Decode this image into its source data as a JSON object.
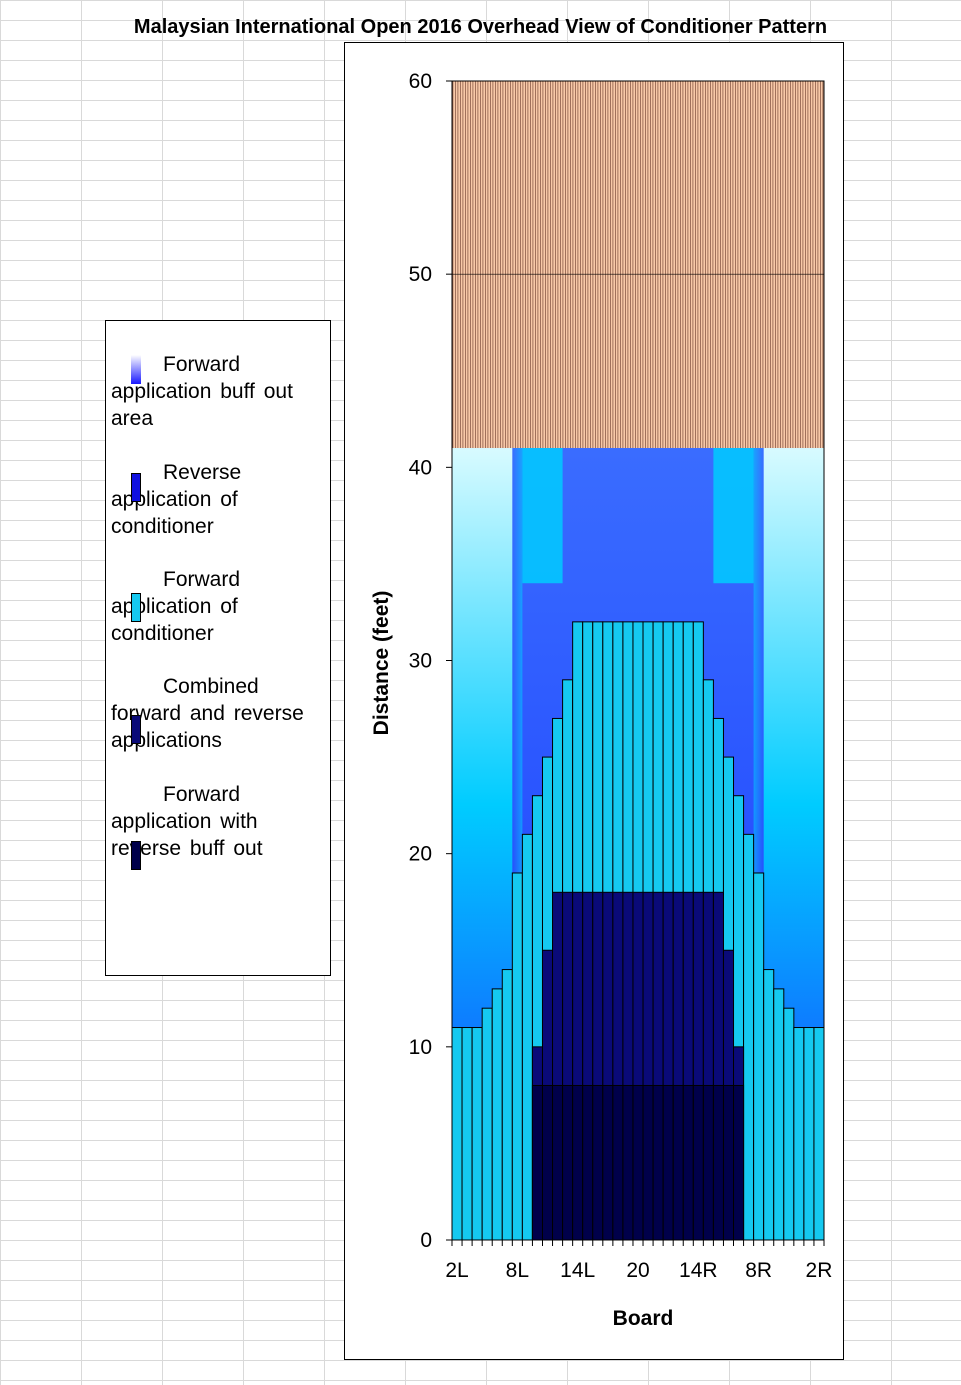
{
  "chart_data": {
    "type": "bar",
    "title": "Malaysian International Open 2016 Overhead View of Conditioner Pattern",
    "xlabel": "Board",
    "ylabel": "Distance (feet)",
    "ylim": [
      0,
      60
    ],
    "yticks": [
      0,
      10,
      20,
      30,
      40,
      50,
      60
    ],
    "x_tick_labels": [
      "2L",
      "8L",
      "14L",
      "20",
      "14R",
      "8R",
      "2R"
    ],
    "pattern_length": 41,
    "boards": 37,
    "forward_buff_out": [
      41,
      41,
      41,
      41,
      41,
      41,
      41,
      41,
      41,
      41,
      41,
      41,
      41,
      41,
      41,
      41,
      41,
      41,
      41,
      41,
      41,
      41,
      41,
      41,
      41,
      41,
      41,
      41,
      41,
      41,
      41,
      41,
      41,
      41,
      41,
      41,
      41
    ],
    "reverse_application": [
      41,
      41,
      41,
      41,
      41,
      41,
      41,
      41,
      41,
      41,
      41,
      41,
      41,
      41,
      41,
      41,
      41,
      41,
      41,
      41,
      41,
      41,
      41,
      41,
      41,
      41,
      41,
      41,
      41,
      41,
      41,
      41,
      41,
      41,
      41,
      41,
      41
    ],
    "forward_application": [
      11,
      11,
      11,
      12,
      13,
      14,
      19,
      21,
      23,
      25,
      27,
      29,
      32,
      32,
      32,
      32,
      32,
      32,
      32,
      32,
      32,
      32,
      32,
      32,
      32,
      29,
      27,
      25,
      23,
      21,
      19,
      14,
      13,
      12,
      11,
      11,
      11
    ],
    "combined_application": [
      0,
      0,
      0,
      0,
      0,
      0,
      0,
      0,
      10,
      15,
      18,
      18,
      18,
      18,
      18,
      18,
      18,
      18,
      18,
      18,
      18,
      18,
      18,
      18,
      18,
      18,
      18,
      15,
      10,
      0,
      0,
      0,
      0,
      0,
      0,
      0,
      0
    ],
    "reverse_buff_out": [
      0,
      0,
      0,
      0,
      0,
      0,
      0,
      0,
      8,
      8,
      8,
      8,
      8,
      8,
      8,
      8,
      8,
      8,
      8,
      8,
      8,
      8,
      8,
      8,
      8,
      8,
      8,
      8,
      8,
      0,
      0,
      0,
      0,
      0,
      0,
      0,
      0
    ],
    "colors": {
      "oil_free": "#f8c9a8",
      "oil_free_lines": "#7a4a3a",
      "buff_out_top": "#ffffff",
      "buff_out_bottom": "#1818ff",
      "reverse": "#3366ff",
      "forward": "#15c9f0",
      "combined": "#0a0a78",
      "reverse_buff": "#00004a",
      "glow": "#00ccff"
    }
  },
  "legend": {
    "items": [
      {
        "line1": "Forward",
        "rest": "application  buff out area",
        "swatch": "gradient"
      },
      {
        "line1": "Reverse",
        "rest": "application  of conditioner",
        "swatch": "#1010e0"
      },
      {
        "line1": "Forward",
        "rest": "application  of conditioner",
        "swatch": "#15c9f0"
      },
      {
        "line1": "Combined",
        "rest": "forward and reverse applications",
        "swatch": "#0a0a78"
      },
      {
        "line1": "Forward",
        "rest": "application  with reverse buff out",
        "swatch": "#00004a"
      }
    ]
  }
}
